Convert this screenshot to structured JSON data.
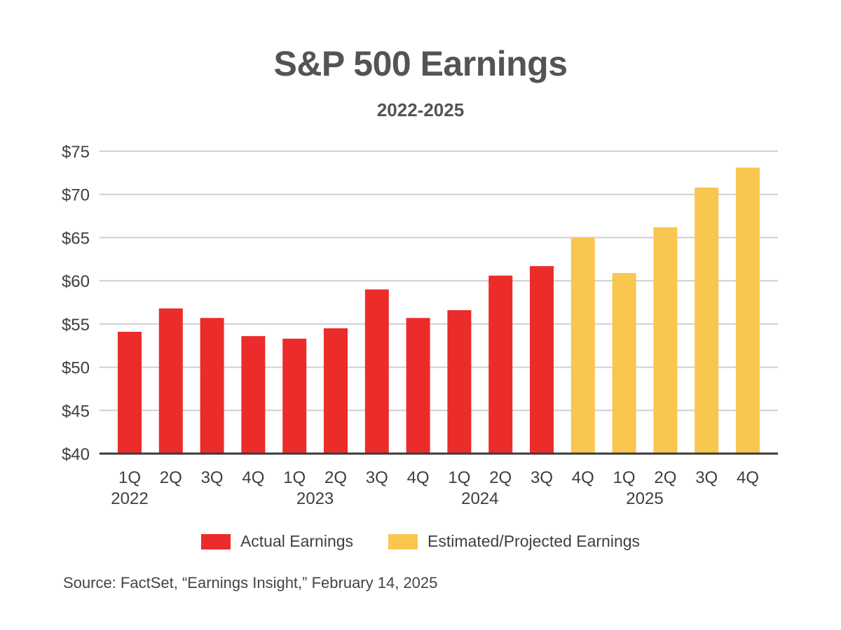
{
  "chart_data": {
    "type": "bar",
    "title": "S&P 500 Earnings",
    "subtitle": "2022-2025",
    "categories": [
      "1Q",
      "2Q",
      "3Q",
      "4Q",
      "1Q",
      "2Q",
      "3Q",
      "4Q",
      "1Q",
      "2Q",
      "3Q",
      "4Q",
      "1Q",
      "2Q",
      "3Q",
      "4Q"
    ],
    "year_labels": [
      "2022",
      "",
      "",
      "",
      "2023",
      "",
      "",
      "",
      "2024",
      "",
      "",
      "",
      "2025",
      "",
      "",
      ""
    ],
    "values": [
      54.1,
      56.8,
      55.7,
      53.6,
      53.3,
      54.5,
      59.0,
      55.7,
      56.6,
      60.6,
      61.7,
      65.0,
      60.9,
      66.2,
      70.8,
      73.1
    ],
    "series_type": [
      "actual",
      "actual",
      "actual",
      "actual",
      "actual",
      "actual",
      "actual",
      "actual",
      "actual",
      "actual",
      "actual",
      "estimated",
      "estimated",
      "estimated",
      "estimated",
      "estimated"
    ],
    "ylim": [
      40,
      75
    ],
    "yticks": [
      40,
      45,
      50,
      55,
      60,
      65,
      70,
      75
    ],
    "ytick_labels": [
      "$40",
      "$45",
      "$50",
      "$55",
      "$60",
      "$65",
      "$70",
      "$75"
    ],
    "grid": true,
    "legend": [
      {
        "label": "Actual Earnings",
        "color": "#ec2b2b"
      },
      {
        "label": "Estimated/Projected Earnings",
        "color": "#f9c74f"
      }
    ],
    "legend_position": "bottom",
    "colors": {
      "actual": "#ec2b2b",
      "estimated": "#f9c74f",
      "grid": "#d0d0d0",
      "axis": "#3a3a3a"
    }
  },
  "source": "Source: FactSet, “Earnings Insight,” February 14, 2025"
}
